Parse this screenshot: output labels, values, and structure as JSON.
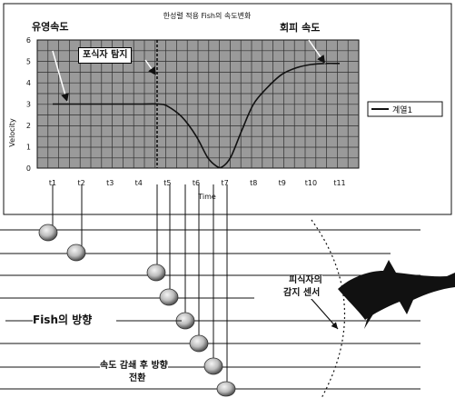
{
  "chart_data": {
    "type": "line",
    "title": "한성렬 적용 Fish의 속도변화",
    "xlabel": "Time",
    "ylabel": "Velocity",
    "x": [
      "t1",
      "t2",
      "t3",
      "t4",
      "t5",
      "t6",
      "t7",
      "t8",
      "t9",
      "t10",
      "t11"
    ],
    "y_ticks": [
      "0",
      "1",
      "2",
      "3",
      "4",
      "5",
      "6"
    ],
    "ylim": [
      0,
      6
    ],
    "series": [
      {
        "name": "계열1",
        "points": [
          [
            1,
            3.0
          ],
          [
            2,
            3.0
          ],
          [
            3,
            3.0
          ],
          [
            4,
            3.0
          ],
          [
            4.7,
            3.0
          ],
          [
            5.0,
            2.9
          ],
          [
            5.5,
            2.4
          ],
          [
            6.0,
            1.5
          ],
          [
            6.4,
            0.5
          ],
          [
            6.7,
            0.1
          ],
          [
            6.9,
            0.05
          ],
          [
            7.2,
            0.5
          ],
          [
            7.6,
            1.8
          ],
          [
            8.0,
            3.0
          ],
          [
            8.5,
            3.8
          ],
          [
            9.0,
            4.4
          ],
          [
            9.5,
            4.7
          ],
          [
            10.0,
            4.85
          ],
          [
            10.5,
            4.9
          ],
          [
            11.0,
            4.9
          ]
        ]
      }
    ],
    "grid": true,
    "legend_position": "right"
  },
  "annotations": {
    "swim_speed": "유영속도",
    "predator_detect": "포식자 탐지",
    "escape_speed": "회피 속도",
    "fish_direction": "Fish의 방향",
    "predator_sensor_line1": "피식자의",
    "predator_sensor_line2": "감지 센서",
    "turn_line1": "속도 감쇄 후 방향",
    "turn_line2": "전환"
  },
  "colors": {
    "plot_bg": "#9a9a9a",
    "grid": "#2e2e2e",
    "line": "#111111",
    "fish": "#bdbdbd"
  }
}
